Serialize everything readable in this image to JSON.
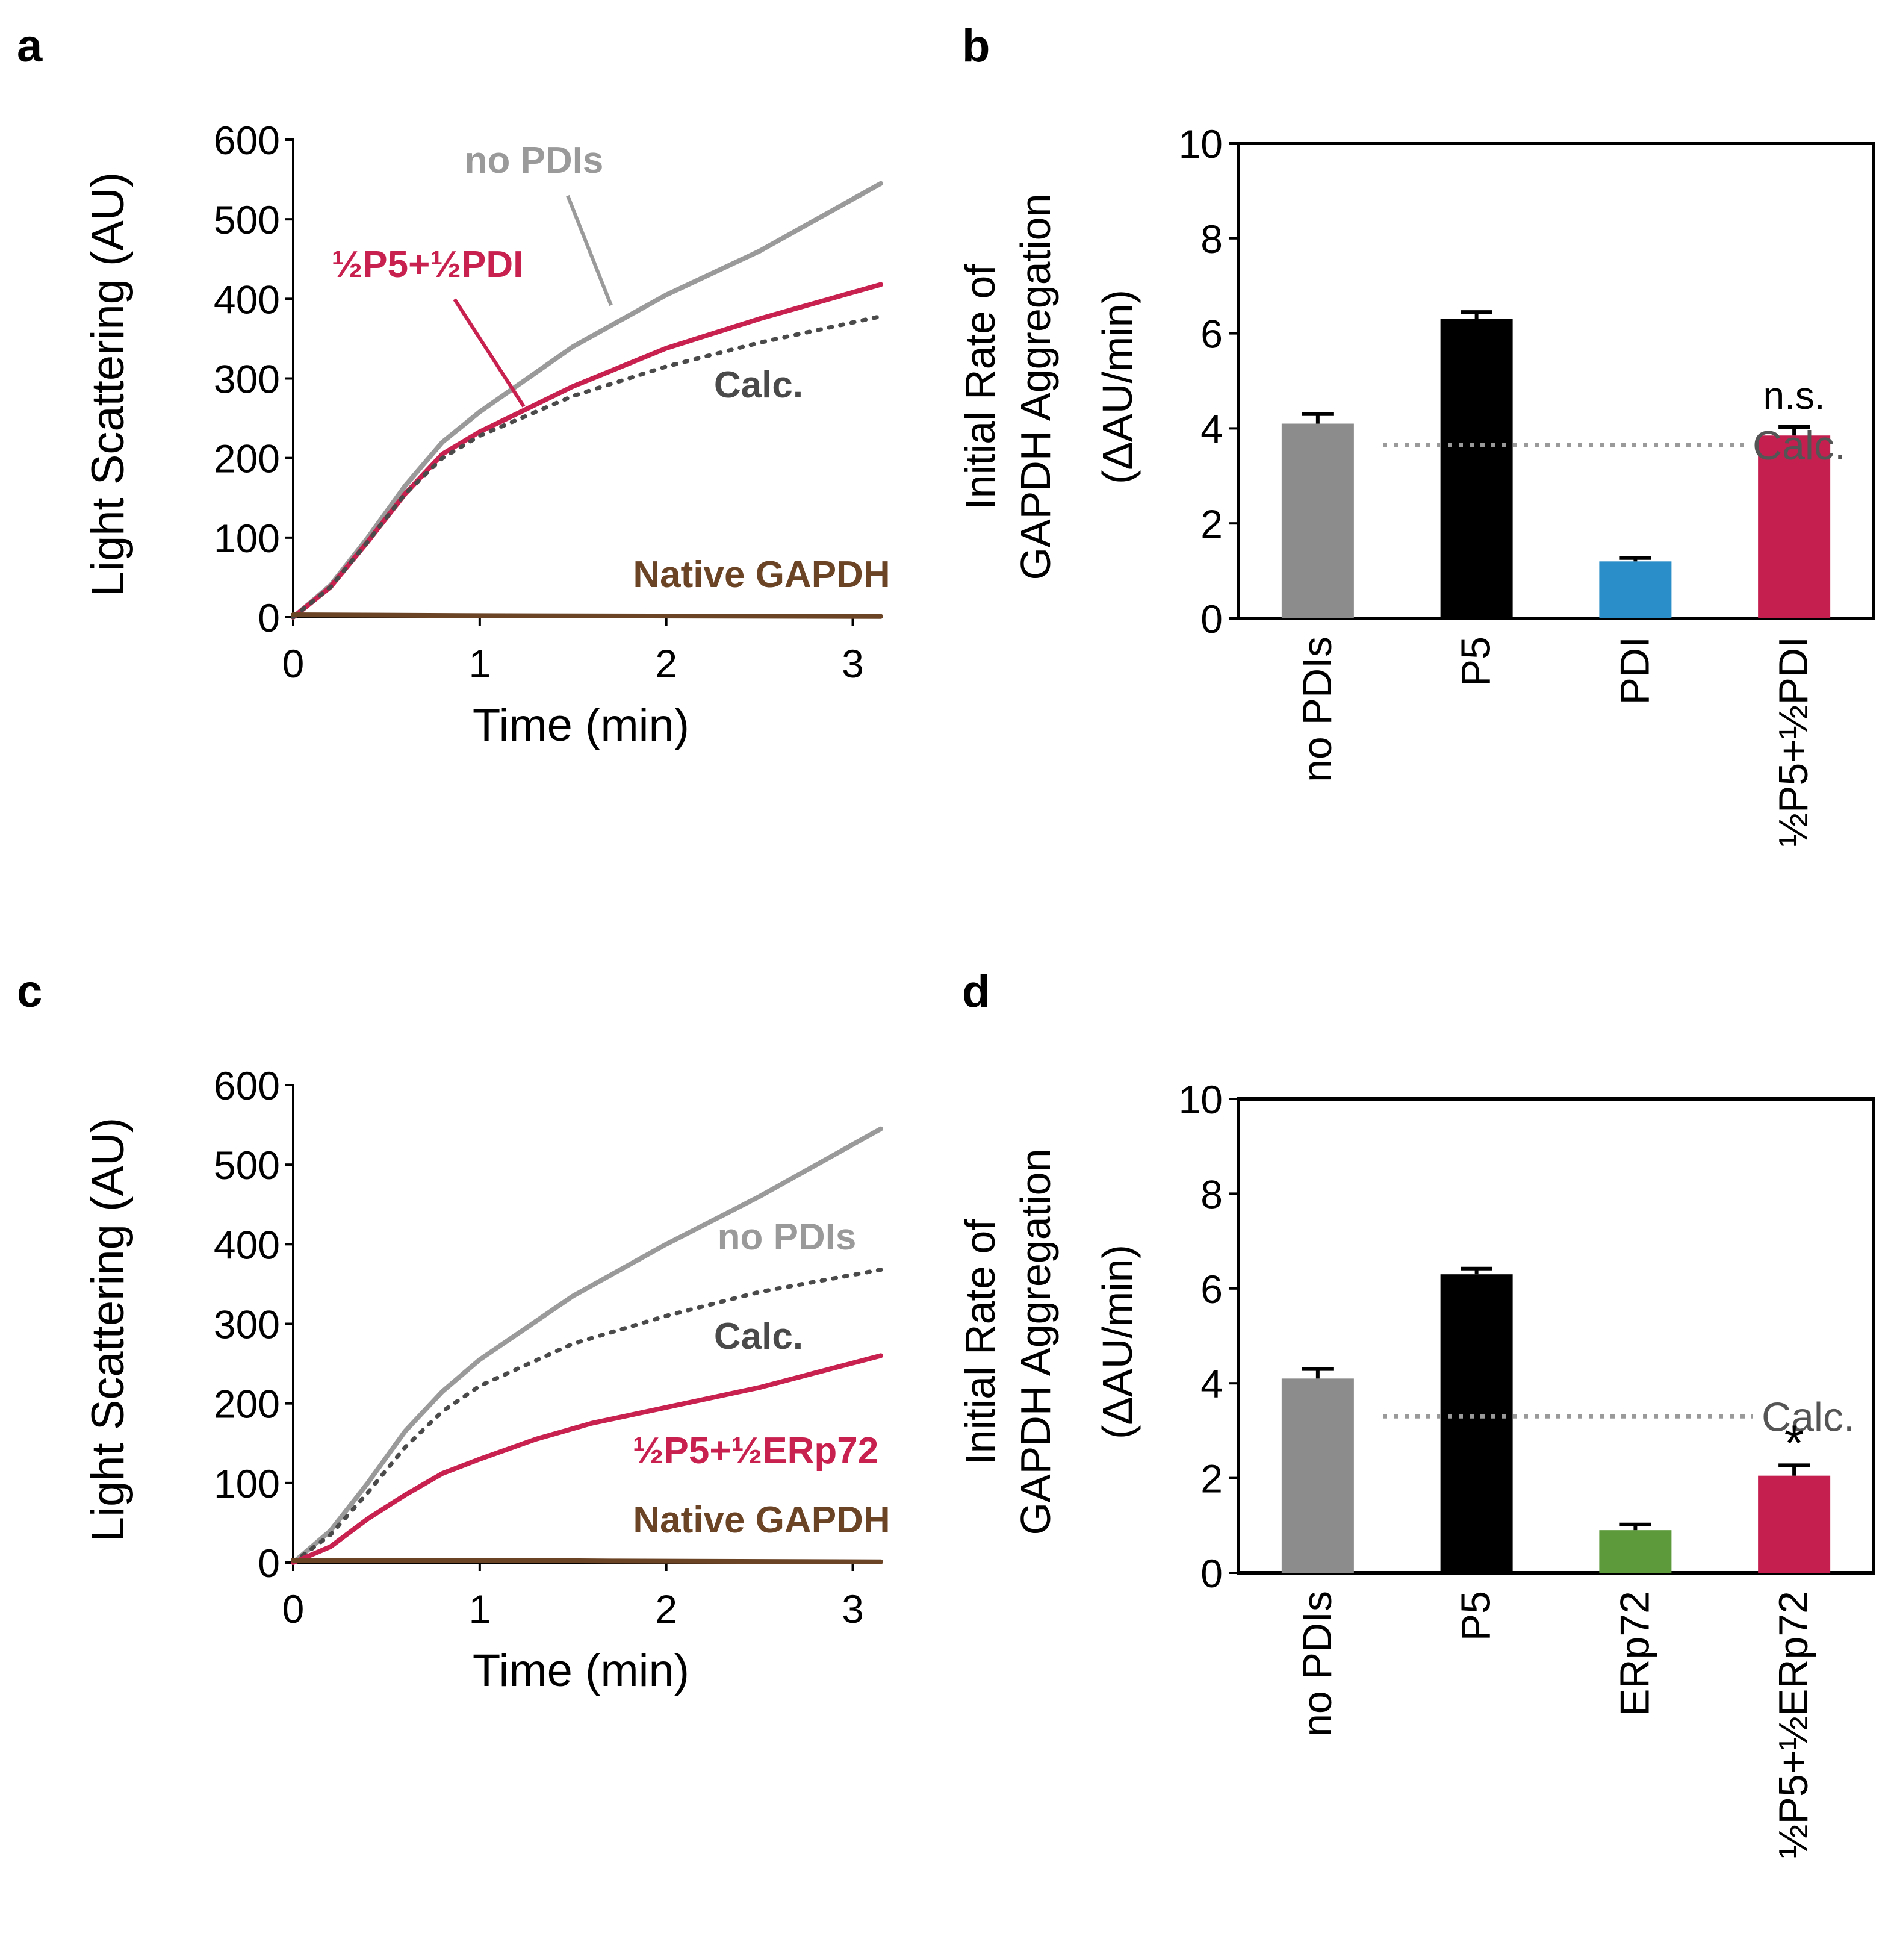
{
  "panels": {
    "a": {
      "label": "a"
    },
    "b": {
      "label": "b"
    },
    "c": {
      "label": "c"
    },
    "d": {
      "label": "d"
    }
  },
  "colors": {
    "no_pdis": "#9a9a9a",
    "mix": "#c8204f",
    "calc": "#4a4a4a",
    "native": "#6b4426",
    "bar_no_pdis": "#8c8c8c",
    "bar_p5": "#000000",
    "bar_pdi": "#2a8fc8",
    "bar_erp72": "#5d9a3c",
    "bar_mix": "#c41f4e",
    "calc_ref": "#9a9a9a"
  },
  "chart_data": [
    {
      "id": "a",
      "type": "line",
      "xlabel": "Time (min)",
      "ylabel": "Light Scattering (AU)",
      "xlim": [
        0,
        3.15
      ],
      "ylim": [
        0,
        600
      ],
      "xticks": [
        "0",
        "1",
        "2",
        "3"
      ],
      "yticks": [
        "0",
        "100",
        "200",
        "300",
        "400",
        "500",
        "600"
      ],
      "series": [
        {
          "name": "no PDIs",
          "label": "no PDIs",
          "style": "solid",
          "color_key": "no_pdis",
          "x": [
            0,
            0.2,
            0.4,
            0.6,
            0.8,
            1.0,
            1.5,
            2.0,
            2.5,
            3.15
          ],
          "y": [
            0,
            40,
            100,
            165,
            220,
            258,
            340,
            405,
            460,
            545
          ]
        },
        {
          "name": "½P5+½PDI",
          "label": "½P5+½PDI",
          "style": "solid",
          "color_key": "mix",
          "x": [
            0,
            0.2,
            0.4,
            0.6,
            0.8,
            1.0,
            1.5,
            2.0,
            2.5,
            3.15
          ],
          "y": [
            0,
            38,
            95,
            155,
            205,
            233,
            290,
            338,
            375,
            418
          ]
        },
        {
          "name": "Calc.",
          "label": "Calc.",
          "style": "dotted",
          "color_key": "calc",
          "x": [
            0,
            0.2,
            0.4,
            0.6,
            0.8,
            1.0,
            1.5,
            2.0,
            2.5,
            3.15
          ],
          "y": [
            0,
            38,
            95,
            155,
            200,
            228,
            278,
            315,
            345,
            378
          ]
        },
        {
          "name": "Native GAPDH",
          "label": "Native GAPDH",
          "style": "solid",
          "color_key": "native",
          "x": [
            0,
            1.0,
            3.15
          ],
          "y": [
            3,
            2,
            1
          ]
        }
      ]
    },
    {
      "id": "b",
      "type": "bar",
      "ylabel_line1": "Initial Rate of",
      "ylabel_line2": "GAPDH Aggregation",
      "ylabel_line3": "(ΔAU/min)",
      "ylim": [
        0,
        10
      ],
      "yticks": [
        "0",
        "2",
        "4",
        "6",
        "8",
        "10"
      ],
      "categories": [
        "no PDIs",
        "P5",
        "PDI",
        "½P5+½PDI"
      ],
      "values": [
        4.1,
        6.3,
        1.2,
        3.85
      ],
      "errors": [
        0.2,
        0.15,
        0.07,
        0.18
      ],
      "color_keys": [
        "bar_no_pdis",
        "bar_p5",
        "bar_pdi",
        "bar_mix"
      ],
      "calc_value": 3.65,
      "calc_label": "Calc.",
      "significance": {
        "bar": 3,
        "text": "n.s."
      }
    },
    {
      "id": "c",
      "type": "line",
      "xlabel": "Time (min)",
      "ylabel": "Light Scattering (AU)",
      "xlim": [
        0,
        3.15
      ],
      "ylim": [
        0,
        600
      ],
      "xticks": [
        "0",
        "1",
        "2",
        "3"
      ],
      "yticks": [
        "0",
        "100",
        "200",
        "300",
        "400",
        "500",
        "600"
      ],
      "series": [
        {
          "name": "no PDIs",
          "label": "no PDIs",
          "style": "solid",
          "color_key": "no_pdis",
          "x": [
            0,
            0.2,
            0.4,
            0.6,
            0.8,
            1.0,
            1.5,
            2.0,
            2.5,
            3.15
          ],
          "y": [
            0,
            40,
            100,
            165,
            215,
            255,
            335,
            400,
            460,
            545
          ]
        },
        {
          "name": "Calc.",
          "label": "Calc.",
          "style": "dotted",
          "color_key": "calc",
          "x": [
            0,
            0.2,
            0.4,
            0.6,
            0.8,
            1.0,
            1.5,
            2.0,
            2.5,
            3.15
          ],
          "y": [
            0,
            35,
            88,
            145,
            190,
            222,
            275,
            310,
            340,
            368
          ]
        },
        {
          "name": "½P5+½ERp72",
          "label": "½P5+½ERp72",
          "style": "solid",
          "color_key": "mix",
          "x": [
            0,
            0.2,
            0.4,
            0.6,
            0.8,
            1.0,
            1.3,
            1.6,
            2.0,
            2.5,
            3.15
          ],
          "y": [
            0,
            20,
            55,
            85,
            112,
            130,
            155,
            175,
            195,
            220,
            260
          ]
        },
        {
          "name": "Native GAPDH",
          "label": "Native GAPDH",
          "style": "solid",
          "color_key": "native",
          "x": [
            0,
            1.0,
            1.75,
            3.15
          ],
          "y": [
            3,
            3,
            2,
            1
          ]
        }
      ]
    },
    {
      "id": "d",
      "type": "bar",
      "ylabel_line1": "Initial Rate of",
      "ylabel_line2": "GAPDH Aggregation",
      "ylabel_line3": "(ΔAU/min)",
      "ylim": [
        0,
        10
      ],
      "yticks": [
        "0",
        "2",
        "4",
        "6",
        "8",
        "10"
      ],
      "categories": [
        "no PDIs",
        "P5",
        "ERp72",
        "½P5+½ERp72"
      ],
      "values": [
        4.1,
        6.3,
        0.9,
        2.05
      ],
      "errors": [
        0.2,
        0.12,
        0.12,
        0.22
      ],
      "color_keys": [
        "bar_no_pdis",
        "bar_p5",
        "bar_erp72",
        "bar_mix"
      ],
      "calc_value": 3.3,
      "calc_label": "Calc.",
      "significance": {
        "bar": 3,
        "text": "*"
      }
    }
  ]
}
